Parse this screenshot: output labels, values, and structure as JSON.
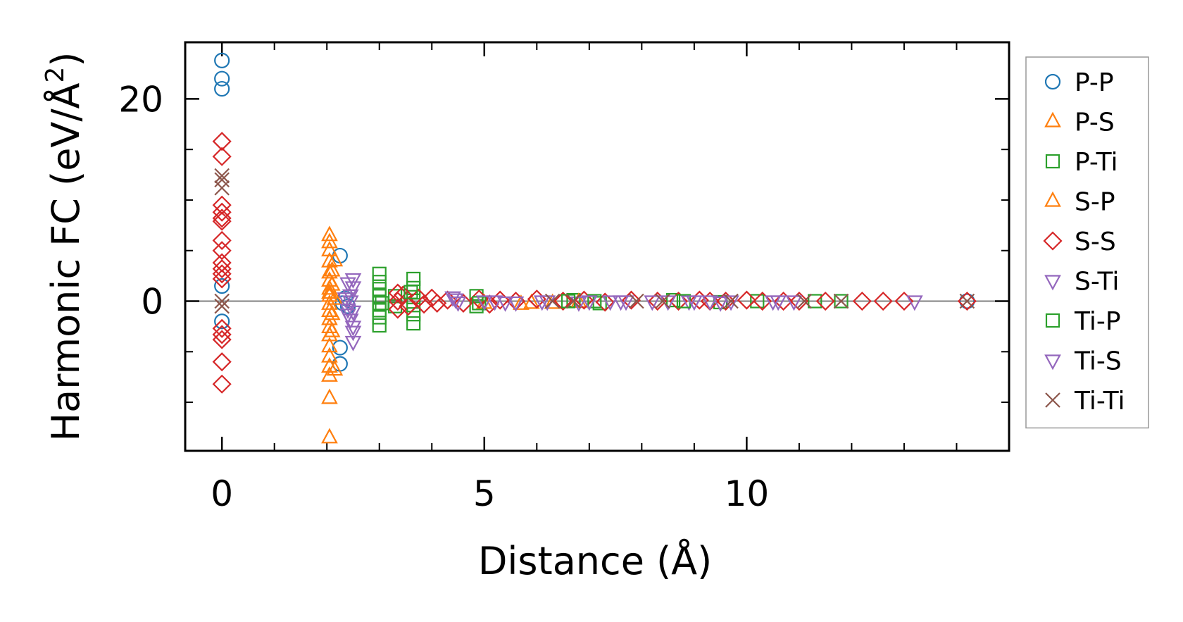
{
  "chart_data": {
    "type": "scatter",
    "xlabel": "Distance (Å)",
    "ylabel": "Harmonic FC (eV/Å",
    "ylabel_sup": "2",
    "ylabel_close": ")",
    "xlim": [
      -0.7,
      15.0
    ],
    "ylim": [
      -14.8,
      25.6
    ],
    "xticks": [
      0,
      5,
      10
    ],
    "xtick_labels": [
      "0",
      "5",
      "10"
    ],
    "xminor": [
      1,
      2,
      3,
      4,
      6,
      7,
      8,
      9,
      11,
      12,
      13,
      14
    ],
    "yticks": [
      0,
      20
    ],
    "ytick_labels": [
      "0",
      "20"
    ],
    "yminor": [
      -10,
      -5,
      5,
      10,
      15
    ],
    "zero_line": 0,
    "legend_position": "outside-right",
    "series": [
      {
        "name": "P-P",
        "marker": "circle",
        "color": "#1f77b4",
        "points": [
          [
            0,
            23.8
          ],
          [
            0,
            22.0
          ],
          [
            0,
            21.0
          ],
          [
            0,
            1.5
          ],
          [
            0,
            -2.0
          ],
          [
            2.25,
            4.5
          ],
          [
            2.25,
            -4.6
          ],
          [
            2.25,
            -6.2
          ],
          [
            2.3,
            -0.2
          ],
          [
            2.35,
            0.3
          ],
          [
            2.4,
            -0.5
          ],
          [
            14.2,
            0
          ]
        ]
      },
      {
        "name": "P-S",
        "marker": "triangle-up",
        "color": "#ff7f0e",
        "points": [
          [
            2.05,
            6.5
          ],
          [
            2.05,
            5.8
          ],
          [
            2.05,
            5.0
          ],
          [
            2.05,
            3.9
          ],
          [
            2.05,
            2.8
          ],
          [
            2.05,
            2.0
          ],
          [
            2.05,
            1.2
          ],
          [
            2.05,
            0.5
          ],
          [
            2.05,
            -0.3
          ],
          [
            2.05,
            -1.0
          ],
          [
            2.05,
            -1.8
          ],
          [
            2.05,
            -2.6
          ],
          [
            2.05,
            -3.4
          ],
          [
            2.05,
            -4.5
          ],
          [
            2.05,
            -5.5
          ],
          [
            2.05,
            -6.5
          ],
          [
            2.05,
            -7.4
          ],
          [
            2.05,
            -9.6
          ],
          [
            2.05,
            -13.5
          ],
          [
            2.1,
            1.6
          ],
          [
            2.1,
            -1.3
          ],
          [
            2.15,
            0.2
          ],
          [
            5.0,
            -0.2
          ],
          [
            5.7,
            -0.3
          ],
          [
            6.3,
            -0.2
          ]
        ]
      },
      {
        "name": "P-Ti",
        "marker": "square",
        "color": "#2ca02c",
        "points": [
          [
            3.0,
            2.7
          ],
          [
            3.0,
            1.9
          ],
          [
            3.0,
            1.2
          ],
          [
            3.0,
            0.5
          ],
          [
            3.0,
            -0.2
          ],
          [
            3.0,
            -0.9
          ],
          [
            3.0,
            -1.6
          ],
          [
            3.0,
            -2.4
          ],
          [
            3.3,
            0.5
          ],
          [
            3.3,
            -0.5
          ],
          [
            3.65,
            2.2
          ],
          [
            3.65,
            1.3
          ],
          [
            3.65,
            0.4
          ],
          [
            3.65,
            -0.4
          ],
          [
            3.65,
            -1.3
          ],
          [
            3.65,
            -2.2
          ],
          [
            4.85,
            0.5
          ],
          [
            4.85,
            -0.5
          ],
          [
            6.7,
            0.1
          ],
          [
            7.2,
            -0.2
          ],
          [
            8.6,
            0.1
          ],
          [
            9.5,
            -0.1
          ],
          [
            10.2,
            0
          ],
          [
            11.3,
            0
          ],
          [
            11.8,
            0
          ]
        ]
      },
      {
        "name": "S-P",
        "marker": "triangle-up",
        "color": "#ff7f0e",
        "points": [
          [
            2.1,
            3.0
          ],
          [
            2.1,
            -3.0
          ],
          [
            2.15,
            4.0
          ],
          [
            2.15,
            -6.8
          ],
          [
            2.05,
            0.8
          ],
          [
            5.9,
            -0.2
          ],
          [
            6.8,
            -0.1
          ]
        ]
      },
      {
        "name": "S-S",
        "marker": "diamond",
        "color": "#d62728",
        "points": [
          [
            0,
            15.8
          ],
          [
            0,
            14.3
          ],
          [
            0,
            9.5
          ],
          [
            0,
            8.8
          ],
          [
            0,
            8.2
          ],
          [
            0,
            7.9
          ],
          [
            0,
            6.0
          ],
          [
            0,
            5.0
          ],
          [
            0,
            3.8
          ],
          [
            0,
            3.2
          ],
          [
            0,
            2.7
          ],
          [
            0,
            2.2
          ],
          [
            0,
            -2.7
          ],
          [
            0,
            -3.3
          ],
          [
            0,
            -3.8
          ],
          [
            0,
            -6.0
          ],
          [
            0,
            -8.2
          ],
          [
            3.35,
            0.8
          ],
          [
            3.35,
            0
          ],
          [
            3.35,
            -0.8
          ],
          [
            3.45,
            0.6
          ],
          [
            3.55,
            -0.5
          ],
          [
            3.75,
            0.3
          ],
          [
            3.85,
            -0.3
          ],
          [
            4.0,
            0.3
          ],
          [
            4.1,
            -0.2
          ],
          [
            4.3,
            0.1
          ],
          [
            4.6,
            -0.2
          ],
          [
            4.9,
            0.2
          ],
          [
            5.1,
            -0.3
          ],
          [
            5.3,
            0.1
          ],
          [
            5.6,
            0
          ],
          [
            6.0,
            0.2
          ],
          [
            6.5,
            0
          ],
          [
            6.9,
            0.1
          ],
          [
            7.3,
            -0.1
          ],
          [
            7.8,
            0.1
          ],
          [
            8.3,
            0
          ],
          [
            8.7,
            0
          ],
          [
            9.1,
            0.1
          ],
          [
            9.3,
            0
          ],
          [
            9.6,
            0
          ],
          [
            10.0,
            0.1
          ],
          [
            10.3,
            0
          ],
          [
            10.7,
            0
          ],
          [
            11.0,
            0
          ],
          [
            11.5,
            0
          ],
          [
            12.2,
            0
          ],
          [
            12.6,
            0
          ],
          [
            13.0,
            0
          ],
          [
            14.2,
            0
          ]
        ]
      },
      {
        "name": "S-Ti",
        "marker": "triangle-down",
        "color": "#9467bd",
        "points": [
          [
            2.35,
            0.3
          ],
          [
            2.4,
            -0.8
          ],
          [
            2.5,
            2.2
          ],
          [
            2.5,
            1.4
          ],
          [
            2.5,
            -1.0
          ],
          [
            2.5,
            -2.5
          ],
          [
            2.45,
            0.6
          ],
          [
            4.4,
            0.4
          ],
          [
            4.5,
            -0.1
          ],
          [
            5.2,
            0
          ],
          [
            5.6,
            -0.1
          ],
          [
            6.1,
            0
          ],
          [
            6.8,
            -0.1
          ],
          [
            7.4,
            0
          ],
          [
            7.6,
            0
          ],
          [
            8.2,
            0
          ],
          [
            8.9,
            0
          ],
          [
            9.3,
            0
          ],
          [
            9.5,
            -0.1
          ],
          [
            10.5,
            0
          ],
          [
            10.9,
            0
          ],
          [
            13.2,
            0
          ]
        ]
      },
      {
        "name": "Ti-P",
        "marker": "square",
        "color": "#2ca02c",
        "points": [
          [
            3.05,
            -0.2
          ],
          [
            3.6,
            0.9
          ],
          [
            4.9,
            -0.2
          ],
          [
            6.6,
            0
          ],
          [
            7.1,
            0
          ],
          [
            8.8,
            0
          ]
        ]
      },
      {
        "name": "Ti-S",
        "marker": "triangle-down",
        "color": "#9467bd",
        "points": [
          [
            2.4,
            1.8
          ],
          [
            2.45,
            -1.8
          ],
          [
            2.5,
            -3.0
          ],
          [
            2.5,
            -4.0
          ],
          [
            2.4,
            -1.3
          ],
          [
            2.45,
            0
          ],
          [
            4.45,
            0.2
          ],
          [
            5.0,
            0
          ],
          [
            5.4,
            -0.1
          ],
          [
            6.2,
            0
          ],
          [
            7.0,
            0
          ],
          [
            7.7,
            0
          ],
          [
            8.5,
            0
          ],
          [
            9.0,
            0
          ],
          [
            9.7,
            0
          ],
          [
            10.6,
            0
          ]
        ]
      },
      {
        "name": "Ti-Ti",
        "marker": "x",
        "color": "#8c564b",
        "points": [
          [
            0,
            12.4
          ],
          [
            0,
            12.0
          ],
          [
            0,
            11.2
          ],
          [
            0,
            0
          ],
          [
            0,
            -0.5
          ],
          [
            6.3,
            0
          ],
          [
            6.7,
            0
          ],
          [
            7.9,
            0
          ],
          [
            8.4,
            0
          ],
          [
            9.7,
            0
          ],
          [
            11.1,
            0
          ],
          [
            11.8,
            0
          ],
          [
            14.2,
            0
          ]
        ]
      }
    ]
  }
}
